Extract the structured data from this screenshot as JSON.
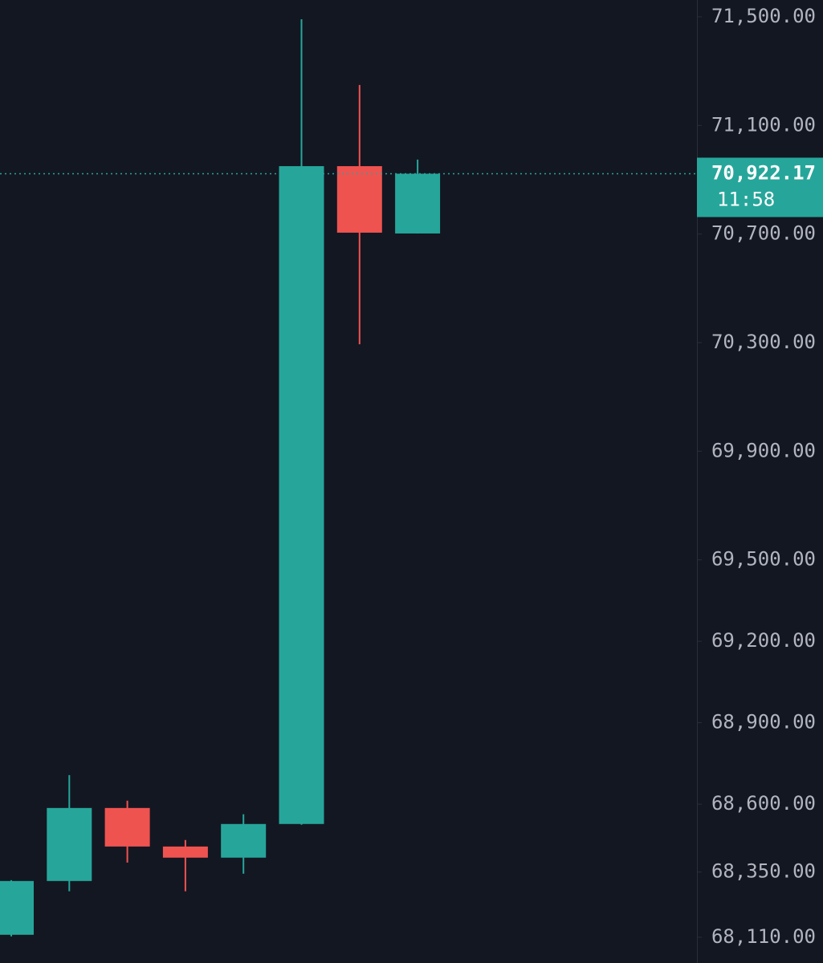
{
  "chart_data": {
    "type": "candlestick",
    "up_color": "#26a69a",
    "down_color": "#ef5350",
    "candles": [
      {
        "open": 68119,
        "high": 68320,
        "low": 68113,
        "close": 68317
      },
      {
        "open": 68317,
        "high": 68707,
        "low": 68279,
        "close": 68586
      },
      {
        "open": 68586,
        "high": 68613,
        "low": 68385,
        "close": 68444
      },
      {
        "open": 68444,
        "high": 68468,
        "low": 68279,
        "close": 68403
      },
      {
        "open": 68403,
        "high": 68563,
        "low": 68344,
        "close": 68527
      },
      {
        "open": 68527,
        "high": 71491,
        "low": 68524,
        "close": 70950
      },
      {
        "open": 70950,
        "high": 71249,
        "low": 70294,
        "close": 70705
      },
      {
        "open": 70702,
        "high": 70974,
        "low": 70702,
        "close": 70922.17
      }
    ],
    "ylim": [
      68015,
      71562
    ],
    "yticks": [
      {
        "value": 71500,
        "label": "71,500.00"
      },
      {
        "value": 71100,
        "label": "71,100.00"
      },
      {
        "value": 70700,
        "label": "70,700.00"
      },
      {
        "value": 70300,
        "label": "70,300.00"
      },
      {
        "value": 69900,
        "label": "69,900.00"
      },
      {
        "value": 69500,
        "label": "69,500.00"
      },
      {
        "value": 69200,
        "label": "69,200.00"
      },
      {
        "value": 68900,
        "label": "68,900.00"
      },
      {
        "value": 68600,
        "label": "68,600.00"
      },
      {
        "value": 68350,
        "label": "68,350.00"
      },
      {
        "value": 68110,
        "label": "68,110.00"
      }
    ],
    "last_price": {
      "value": 70922.17,
      "label": "70,922.17"
    },
    "countdown": "11:58"
  }
}
